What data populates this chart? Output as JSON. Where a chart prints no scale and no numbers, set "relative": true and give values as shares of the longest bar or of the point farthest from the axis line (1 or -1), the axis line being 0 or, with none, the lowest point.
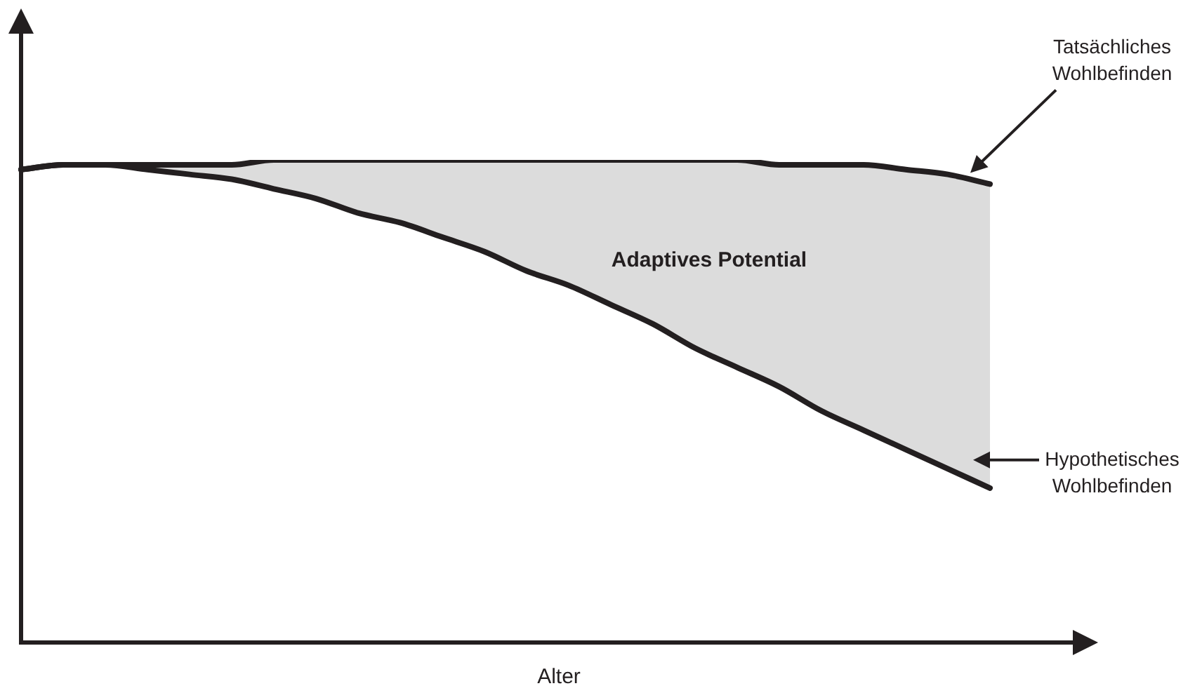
{
  "chart_data": {
    "type": "line",
    "relative": true,
    "xlabel": "Alter",
    "legend": "right",
    "marker": "none",
    "line_style": "solid",
    "categories": [
      null,
      null,
      null,
      null,
      null,
      null,
      null,
      null,
      null,
      null,
      null,
      null,
      null,
      null,
      null,
      null,
      null,
      null,
      null,
      null,
      null,
      null,
      null,
      null
    ],
    "series": [
      {
        "name": "Tatsächliches Wohlbefinden",
        "color": "#231f20",
        "values": [
          0.98,
          0.99,
          0.99,
          0.99,
          0.99,
          0.99,
          1,
          1,
          1,
          1,
          1,
          1,
          1,
          1,
          1,
          1,
          1,
          1,
          0.99,
          0.99,
          0.99,
          0.98,
          0.97,
          0.95
        ]
      },
      {
        "name": "Hypothetisches Wohlbefinden",
        "color": "#231f20",
        "values": [
          0.98,
          0.99,
          0.99,
          0.98,
          0.97,
          0.96,
          0.94,
          0.92,
          0.89,
          0.87,
          0.84,
          0.81,
          0.77,
          0.74,
          0.7,
          0.66,
          0.61,
          0.57,
          0.53,
          0.48,
          0.44,
          0.4,
          0.36,
          0.32
        ],
        "lower": [
          0.98,
          0.99,
          0.99,
          0.98,
          0.97,
          0.96,
          0.94,
          0.92,
          0.89,
          0.87,
          0.84,
          0.81,
          0.77,
          0.74,
          0.7,
          0.66,
          0.61,
          0.57,
          0.53,
          0.48,
          0.44,
          0.4,
          0.36,
          0.32
        ],
        "upper": [
          0.98,
          0.99,
          0.99,
          0.99,
          0.99,
          0.99,
          1,
          1,
          1,
          1,
          1,
          1,
          1,
          1,
          1,
          1,
          1,
          1,
          0.99,
          0.99,
          0.99,
          0.98,
          0.97,
          0.95
        ]
      }
    ],
    "annotations": [
      "Adaptives Potential"
    ]
  }
}
